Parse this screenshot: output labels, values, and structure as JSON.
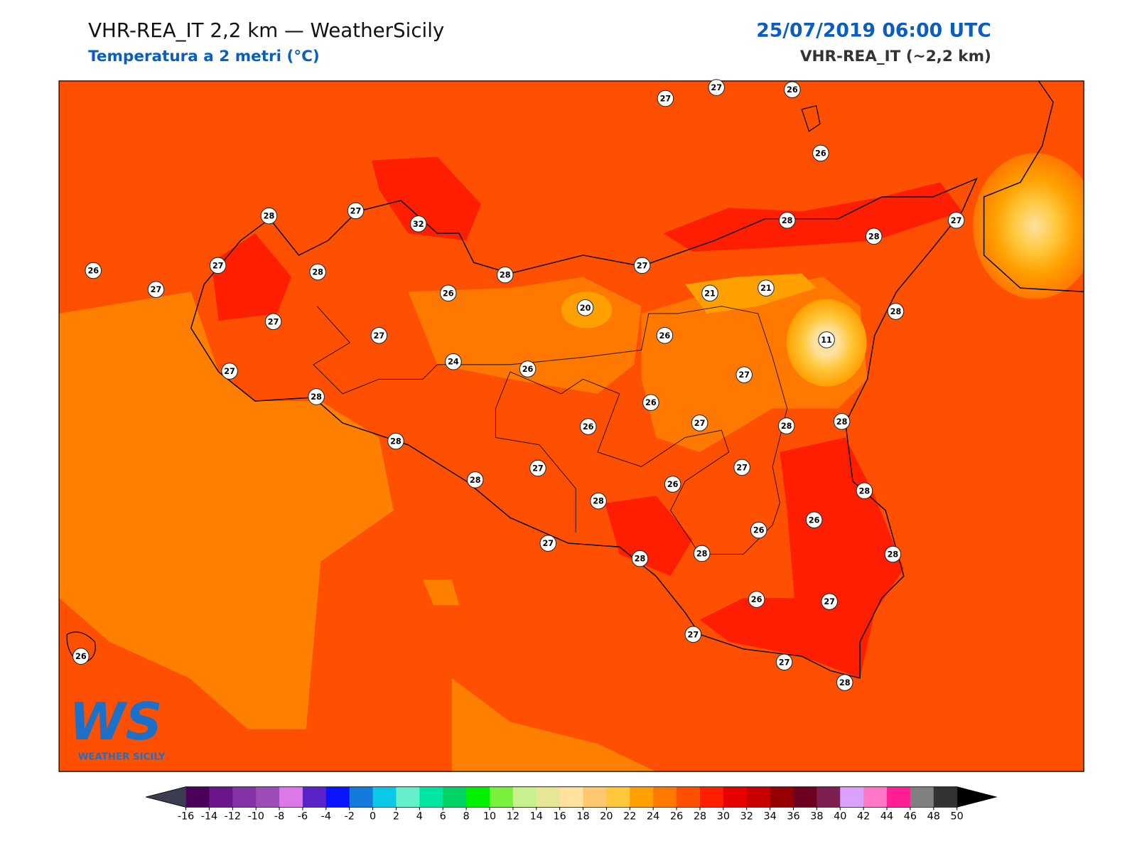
{
  "header": {
    "title": "VHR-REA_IT 2,2 km — WeatherSicily",
    "subtitle": "Temperatura a 2 metri (°C)",
    "date": "25/07/2019 06:00 UTC",
    "model": "VHR-REA_IT (~2,2 km)"
  },
  "map": {
    "stations": [
      27,
      27,
      26,
      26,
      28,
      27,
      32,
      28,
      27,
      28,
      26,
      27,
      28,
      27,
      28,
      27,
      26,
      20,
      21,
      21,
      28,
      27,
      27,
      26,
      11,
      27,
      24,
      26,
      27,
      28,
      26,
      26,
      27,
      28,
      28,
      28,
      27,
      27,
      28,
      26,
      28,
      28,
      26,
      26,
      27,
      28,
      28,
      28,
      26,
      27,
      27,
      26,
      27,
      28
    ]
  },
  "logo": {
    "mark": "WS",
    "text": "WEATHER SICILY"
  },
  "colorbar": {
    "ticks": [
      -16,
      -14,
      -12,
      -10,
      -8,
      -6,
      -4,
      -2,
      0,
      2,
      4,
      6,
      8,
      10,
      12,
      14,
      16,
      18,
      20,
      22,
      24,
      26,
      28,
      30,
      32,
      34,
      36,
      38,
      40,
      42,
      44,
      46,
      48,
      50
    ],
    "colors": [
      "#4b0059",
      "#6a168a",
      "#8333a6",
      "#9e4bba",
      "#dc78e8",
      "#5a23c8",
      "#0a14ff",
      "#147adc",
      "#0ac8e6",
      "#64f0c8",
      "#00e6a0",
      "#00d264",
      "#00f000",
      "#78f03c",
      "#c8f08c",
      "#e6e696",
      "#ffe1a0",
      "#ffc86e",
      "#ffc83c",
      "#ffa000",
      "#ff7800",
      "#ff5000",
      "#ff1e00",
      "#e60000",
      "#c80000",
      "#960000",
      "#6e0020",
      "#7d2050",
      "#dca0ff",
      "#ff78c8",
      "#ff1e96",
      "#808080",
      "#323232"
    ],
    "under_color": "#3c3c50",
    "over_color": "#000000"
  }
}
